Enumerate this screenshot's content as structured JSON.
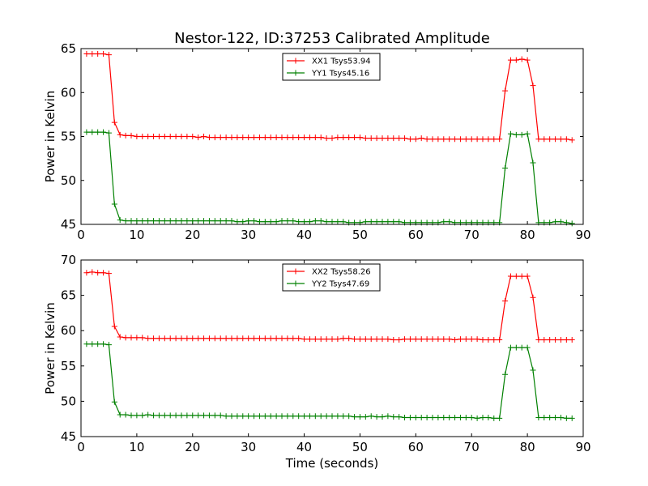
{
  "chart_data": {
    "title": "Nestor-122, ID:37253 Calibrated Amplitude",
    "type": "line",
    "x": [
      1,
      2,
      3,
      4,
      5,
      6,
      7,
      8,
      9,
      10,
      11,
      12,
      13,
      14,
      15,
      16,
      17,
      18,
      19,
      20,
      21,
      22,
      23,
      24,
      25,
      26,
      27,
      28,
      29,
      30,
      31,
      32,
      33,
      34,
      35,
      36,
      37,
      38,
      39,
      40,
      41,
      42,
      43,
      44,
      45,
      46,
      47,
      48,
      49,
      50,
      51,
      52,
      53,
      54,
      55,
      56,
      57,
      58,
      59,
      60,
      61,
      62,
      63,
      64,
      65,
      66,
      67,
      68,
      69,
      70,
      71,
      72,
      73,
      74,
      75,
      76,
      77,
      78,
      79,
      80,
      81,
      82,
      83,
      84,
      85,
      86,
      87,
      88
    ],
    "panels": [
      {
        "ylabel": "Power in Kelvin",
        "xlim": [
          0,
          90
        ],
        "ylim": [
          45,
          65
        ],
        "xticks": [
          0,
          10,
          20,
          30,
          40,
          50,
          60,
          70,
          80,
          90
        ],
        "yticks": [
          45,
          50,
          55,
          60,
          65
        ],
        "legend_position": "top-center",
        "series": [
          {
            "name": "XX1 Tsys53.94",
            "color": "#ff0000",
            "values": [
              64.4,
              64.4,
              64.4,
              64.4,
              64.3,
              56.6,
              55.2,
              55.1,
              55.1,
              55.0,
              55.0,
              55.0,
              55.0,
              55.0,
              55.0,
              55.0,
              55.0,
              55.0,
              55.0,
              55.0,
              54.9,
              55.0,
              54.9,
              54.9,
              54.9,
              54.9,
              54.9,
              54.9,
              54.9,
              54.9,
              54.9,
              54.9,
              54.9,
              54.9,
              54.9,
              54.9,
              54.9,
              54.9,
              54.9,
              54.9,
              54.9,
              54.9,
              54.9,
              54.8,
              54.8,
              54.9,
              54.9,
              54.9,
              54.9,
              54.9,
              54.8,
              54.8,
              54.8,
              54.8,
              54.8,
              54.8,
              54.8,
              54.8,
              54.7,
              54.7,
              54.8,
              54.7,
              54.7,
              54.7,
              54.7,
              54.7,
              54.7,
              54.7,
              54.7,
              54.7,
              54.7,
              54.7,
              54.7,
              54.7,
              54.7,
              60.2,
              63.7,
              63.7,
              63.8,
              63.7,
              60.8,
              54.7,
              54.7,
              54.7,
              54.7,
              54.7,
              54.7,
              54.6
            ]
          },
          {
            "name": "YY1 Tsys45.16",
            "color": "#008000",
            "values": [
              55.5,
              55.5,
              55.5,
              55.5,
              55.4,
              47.3,
              45.5,
              45.4,
              45.4,
              45.4,
              45.4,
              45.4,
              45.4,
              45.4,
              45.4,
              45.4,
              45.4,
              45.4,
              45.4,
              45.4,
              45.4,
              45.4,
              45.4,
              45.4,
              45.4,
              45.4,
              45.4,
              45.3,
              45.3,
              45.4,
              45.4,
              45.3,
              45.3,
              45.3,
              45.3,
              45.4,
              45.4,
              45.4,
              45.3,
              45.3,
              45.3,
              45.4,
              45.4,
              45.3,
              45.3,
              45.3,
              45.3,
              45.2,
              45.2,
              45.2,
              45.3,
              45.3,
              45.3,
              45.3,
              45.3,
              45.3,
              45.3,
              45.2,
              45.2,
              45.2,
              45.2,
              45.2,
              45.2,
              45.2,
              45.3,
              45.3,
              45.2,
              45.2,
              45.2,
              45.2,
              45.2,
              45.2,
              45.2,
              45.2,
              45.2,
              51.4,
              55.3,
              55.2,
              55.2,
              55.3,
              52.0,
              45.2,
              45.2,
              45.2,
              45.3,
              45.3,
              45.2,
              45.1
            ]
          }
        ]
      },
      {
        "ylabel": "Power in Kelvin",
        "xlabel": "Time (seconds)",
        "xlim": [
          0,
          90
        ],
        "ylim": [
          45,
          70
        ],
        "xticks": [
          0,
          10,
          20,
          30,
          40,
          50,
          60,
          70,
          80,
          90
        ],
        "yticks": [
          45,
          50,
          55,
          60,
          65,
          70
        ],
        "legend_position": "top-center",
        "series": [
          {
            "name": "XX2 Tsys58.26",
            "color": "#ff0000",
            "values": [
              68.2,
              68.3,
              68.2,
              68.2,
              68.1,
              60.6,
              59.1,
              59.0,
              59.0,
              59.0,
              59.0,
              58.9,
              58.9,
              58.9,
              58.9,
              58.9,
              58.9,
              58.9,
              58.9,
              58.9,
              58.9,
              58.9,
              58.9,
              58.9,
              58.9,
              58.9,
              58.9,
              58.9,
              58.9,
              58.9,
              58.9,
              58.9,
              58.9,
              58.9,
              58.9,
              58.9,
              58.9,
              58.9,
              58.9,
              58.8,
              58.8,
              58.8,
              58.8,
              58.8,
              58.8,
              58.8,
              58.9,
              58.9,
              58.8,
              58.8,
              58.8,
              58.8,
              58.8,
              58.8,
              58.8,
              58.7,
              58.7,
              58.8,
              58.8,
              58.8,
              58.8,
              58.8,
              58.8,
              58.8,
              58.8,
              58.8,
              58.7,
              58.8,
              58.8,
              58.8,
              58.8,
              58.7,
              58.7,
              58.7,
              58.7,
              64.2,
              67.7,
              67.7,
              67.7,
              67.7,
              64.7,
              58.7,
              58.7,
              58.7,
              58.7,
              58.7,
              58.7,
              58.7
            ]
          },
          {
            "name": "YY2 Tsys47.69",
            "color": "#008000",
            "values": [
              58.1,
              58.1,
              58.1,
              58.1,
              58.0,
              49.9,
              48.1,
              48.1,
              48.0,
              48.0,
              48.0,
              48.1,
              48.0,
              48.0,
              48.0,
              48.0,
              48.0,
              48.0,
              48.0,
              48.0,
              48.0,
              48.0,
              48.0,
              48.0,
              48.0,
              47.9,
              47.9,
              47.9,
              47.9,
              47.9,
              47.9,
              47.9,
              47.9,
              47.9,
              47.9,
              47.9,
              47.9,
              47.9,
              47.9,
              47.9,
              47.9,
              47.9,
              47.9,
              47.9,
              47.9,
              47.9,
              47.9,
              47.9,
              47.8,
              47.8,
              47.8,
              47.9,
              47.8,
              47.8,
              47.9,
              47.8,
              47.8,
              47.7,
              47.7,
              47.7,
              47.7,
              47.7,
              47.7,
              47.7,
              47.7,
              47.7,
              47.7,
              47.7,
              47.7,
              47.7,
              47.6,
              47.7,
              47.7,
              47.6,
              47.6,
              53.8,
              57.6,
              57.6,
              57.6,
              57.6,
              54.4,
              47.7,
              47.7,
              47.7,
              47.7,
              47.7,
              47.6,
              47.6
            ]
          }
        ]
      }
    ]
  }
}
